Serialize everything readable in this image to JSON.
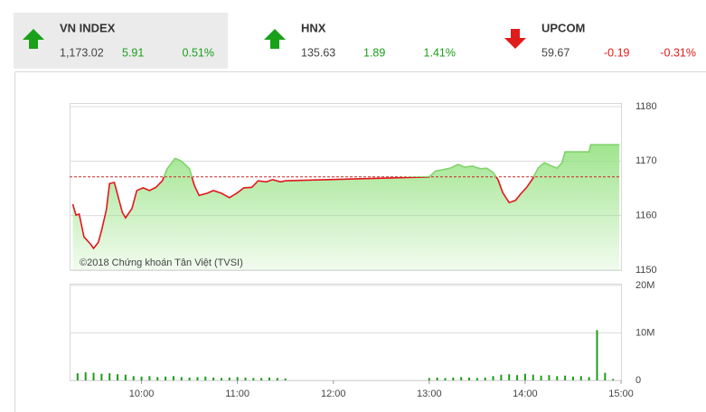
{
  "header": {
    "active_index": 0,
    "up_color": "#1aa01a",
    "down_color": "#e01b1b",
    "indices": [
      {
        "name": "VN INDEX",
        "value": "1,173.02",
        "change": "5.91",
        "percent": "0.51%",
        "direction": "up"
      },
      {
        "name": "HNX",
        "value": "135.63",
        "change": "1.89",
        "percent": "1.41%",
        "direction": "up"
      },
      {
        "name": "UPCOM",
        "value": "59.67",
        "change": "-0.19",
        "percent": "-0.31%",
        "direction": "down"
      }
    ]
  },
  "chart_data": [
    {
      "type": "line",
      "annotation": "©2018 Chứng khoán Tân Việt (TVSI)",
      "x": [
        "09:17",
        "09:19",
        "09:21",
        "09:24",
        "09:28",
        "09:30",
        "09:33",
        "09:35",
        "09:38",
        "09:40",
        "09:43",
        "09:45",
        "09:48",
        "09:50",
        "09:54",
        "09:57",
        "10:01",
        "10:05",
        "10:09",
        "10:13",
        "10:16",
        "10:21",
        "10:25",
        "10:30",
        "10:33",
        "10:36",
        "10:41",
        "10:45",
        "10:50",
        "10:55",
        "11:00",
        "11:04",
        "11:09",
        "11:13",
        "11:18",
        "11:22",
        "11:27",
        "11:30",
        "13:00",
        "13:04",
        "13:08",
        "13:13",
        "13:18",
        "13:22",
        "13:27",
        "13:32",
        "13:36",
        "13:40",
        "13:43",
        "13:46",
        "13:50",
        "13:54",
        "13:57",
        "14:01",
        "14:05",
        "14:08",
        "14:12",
        "14:16",
        "14:20",
        "14:23",
        "14:25",
        "14:40",
        "14:41",
        "14:59"
      ],
      "values": [
        1162.1,
        1160.1,
        1160.3,
        1156.1,
        1154.8,
        1154.0,
        1155.1,
        1157.3,
        1161.1,
        1165.9,
        1166.1,
        1163.9,
        1160.6,
        1159.6,
        1161.3,
        1164.6,
        1165.1,
        1164.6,
        1165.2,
        1166.4,
        1168.6,
        1170.5,
        1170.0,
        1168.6,
        1165.6,
        1163.7,
        1164.1,
        1164.6,
        1164.1,
        1163.3,
        1164.2,
        1165.1,
        1165.2,
        1166.4,
        1166.2,
        1166.6,
        1166.2,
        1166.4,
        1167.1,
        1168.2,
        1168.4,
        1168.7,
        1169.4,
        1168.9,
        1169.1,
        1168.6,
        1168.7,
        1167.9,
        1166.6,
        1164.2,
        1162.4,
        1162.8,
        1163.9,
        1165.2,
        1166.9,
        1168.7,
        1169.7,
        1169.2,
        1168.7,
        1169.7,
        1171.7,
        1171.7,
        1173.0,
        1173.0
      ],
      "reference_line": 1167.11,
      "reference_color": "#c62828",
      "color": "#e3161b",
      "color_above": "#7fd36a",
      "fill_color": "#8fe07a",
      "xlim": [
        "09:15",
        "15:00"
      ],
      "ylim": [
        1150,
        1180
      ],
      "yticks": [
        1150,
        1160,
        1170,
        1180
      ],
      "grid": true
    },
    {
      "type": "bar",
      "x": [
        "09:20",
        "09:25",
        "09:30",
        "09:35",
        "09:40",
        "09:45",
        "09:50",
        "09:55",
        "10:00",
        "10:05",
        "10:10",
        "10:15",
        "10:20",
        "10:25",
        "10:30",
        "10:35",
        "10:40",
        "10:45",
        "10:50",
        "10:55",
        "11:00",
        "11:05",
        "11:10",
        "11:15",
        "11:20",
        "11:25",
        "11:30",
        "13:00",
        "13:05",
        "13:10",
        "13:15",
        "13:20",
        "13:25",
        "13:30",
        "13:35",
        "13:40",
        "13:45",
        "13:50",
        "13:55",
        "14:00",
        "14:05",
        "14:10",
        "14:15",
        "14:20",
        "14:25",
        "14:30",
        "14:35",
        "14:40",
        "14:45",
        "14:50",
        "14:55"
      ],
      "values": [
        1500000,
        1700000,
        1600000,
        1400000,
        1500000,
        1300000,
        1200000,
        900000,
        800000,
        900000,
        700000,
        800000,
        900000,
        700000,
        600000,
        700000,
        800000,
        600000,
        500000,
        600000,
        700000,
        600000,
        500000,
        500000,
        600000,
        500000,
        400000,
        500000,
        600000,
        500000,
        600000,
        700000,
        600000,
        500000,
        600000,
        900000,
        1200000,
        1300000,
        1100000,
        1400000,
        1200000,
        1000000,
        1100000,
        900000,
        1000000,
        800000,
        900000,
        700000,
        10600000,
        1600000,
        300000
      ],
      "color": "#1e9a1e",
      "xlim": [
        "09:15",
        "15:00"
      ],
      "xticks": [
        "10:00",
        "11:00",
        "12:00",
        "13:00",
        "14:00",
        "15:00"
      ],
      "ylim": [
        0,
        20000000
      ],
      "yticks": [
        0,
        {
          "value": 10000000,
          "label": "10M"
        },
        {
          "value": 20000000,
          "label": "20M"
        }
      ],
      "grid": true
    }
  ]
}
